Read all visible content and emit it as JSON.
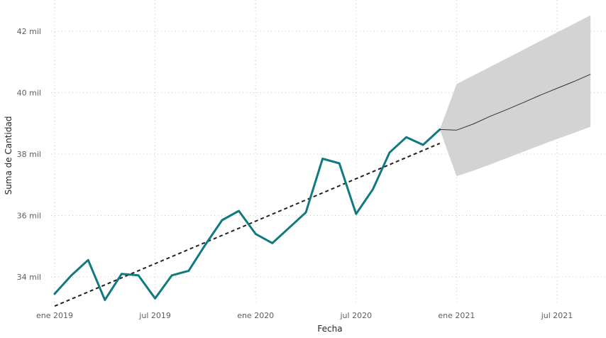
{
  "chart_data": {
    "type": "line",
    "xlabel": "Fecha",
    "ylabel": "Suma de Cantidad",
    "x_ticks": [
      "2019-01",
      "2019-07",
      "2020-01",
      "2020-07",
      "2021-01",
      "2021-07"
    ],
    "x_tick_labels": [
      "ene 2019",
      "jul 2019",
      "ene 2020",
      "jul 2020",
      "ene 2021",
      "jul 2021"
    ],
    "y_ticks": [
      34000,
      36000,
      38000,
      40000,
      42000
    ],
    "y_tick_labels": [
      "34 mil",
      "36 mil",
      "38 mil",
      "40 mil",
      "42 mil"
    ],
    "grid": true,
    "colors": {
      "actual": "#117a80",
      "forecast": "#333333",
      "band": "#d3d3d3",
      "trend": "#222222"
    },
    "series": [
      {
        "kind": "actual",
        "x": [
          "2019-01",
          "2019-02",
          "2019-03",
          "2019-04",
          "2019-05",
          "2019-06",
          "2019-07",
          "2019-08",
          "2019-09",
          "2019-10",
          "2019-11",
          "2019-12",
          "2020-01",
          "2020-02",
          "2020-03",
          "2020-04",
          "2020-05",
          "2020-06",
          "2020-07",
          "2020-08",
          "2020-09",
          "2020-10",
          "2020-11",
          "2020-12"
        ],
        "y": [
          33450,
          34050,
          34550,
          33250,
          34100,
          34050,
          33300,
          34050,
          34200,
          35050,
          35850,
          36150,
          35400,
          35100,
          35600,
          36100,
          37850,
          37700,
          36050,
          36850,
          38050,
          38550,
          38300,
          38800
        ]
      },
      {
        "kind": "forecast",
        "x": [
          "2020-12",
          "2021-01",
          "2021-02",
          "2021-03",
          "2021-04",
          "2021-05",
          "2021-06",
          "2021-07",
          "2021-08",
          "2021-09"
        ],
        "y": [
          38800,
          38780,
          38980,
          39230,
          39450,
          39680,
          39920,
          40140,
          40360,
          40600
        ],
        "upper": [
          38800,
          40280,
          40560,
          40840,
          41120,
          41400,
          41680,
          41960,
          42240,
          42520
        ],
        "lower": [
          38800,
          37280,
          37460,
          37660,
          37870,
          38080,
          38290,
          38490,
          38690,
          38890
        ]
      },
      {
        "kind": "trend",
        "x": [
          "2019-01",
          "2020-12"
        ],
        "y": [
          33050,
          38350
        ]
      }
    ]
  }
}
